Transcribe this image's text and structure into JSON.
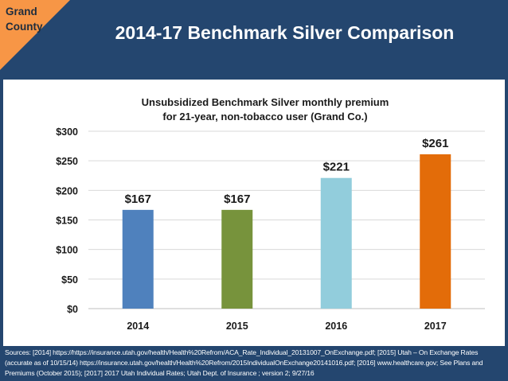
{
  "county_label_line1": "Grand",
  "county_label_line2": "County",
  "slide_title": "2014-17 Benchmark Silver Comparison",
  "sources_text": "Sources: [2014] https://https://insurance.utah.gov/health/Health%20Refrom/ACA_Rate_Individual_20131007_OnExchange.pdf; [2015] Utah – On Exchange Rates (accurate as of 10/15/14) https://insurance.utah.gov/health/Health%20Refrom/2015IndividualOnExchange20141016.pdf; [2016] www.healthcare.gov; See Plans and Premiums (October 2015); [2017] 2017 Utah Individual Rates; Utah Dept. of Insurance ; version 2; 9/27/16",
  "colors": {
    "background": "#24466f",
    "corner": "#f79646",
    "bar_colors": [
      "#4f81bd",
      "#77933c",
      "#92cddc",
      "#e36c09"
    ]
  },
  "chart_data": {
    "type": "bar",
    "title_line1": "Unsubsidized Benchmark Silver monthly premium",
    "title_line2": "for 21-year, non-tobacco user (Grand Co.)",
    "categories": [
      "2014",
      "2015",
      "2016",
      "2017"
    ],
    "values": [
      167,
      167,
      221,
      261
    ],
    "data_labels": [
      "$167",
      "$167",
      "$221",
      "$261"
    ],
    "yticks": [
      0,
      50,
      100,
      150,
      200,
      250,
      300
    ],
    "ytick_labels": [
      "$0",
      "$50",
      "$100",
      "$150",
      "$200",
      "$250",
      "$300"
    ],
    "ylim": [
      0,
      300
    ],
    "grid": true,
    "legend": false
  }
}
